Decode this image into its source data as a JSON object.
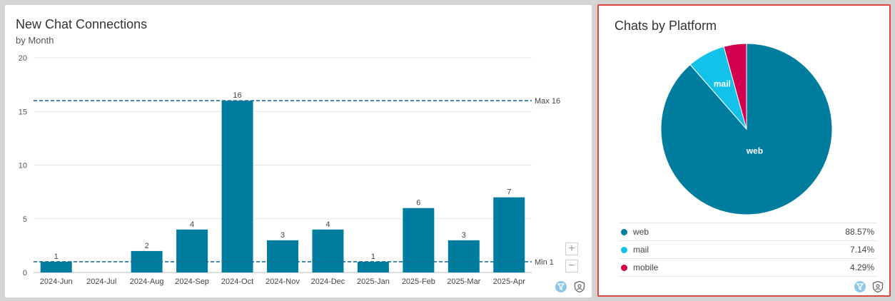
{
  "colors": {
    "bar": "#007d9e",
    "accent_line": "#1b6e8f",
    "web": "#007d9e",
    "mail": "#12c2e9",
    "mobile": "#d2004f"
  },
  "left_panel": {
    "title": "New Chat Connections",
    "subtitle": "by Month",
    "zoom_in_label": "+",
    "zoom_out_label": "−",
    "icons": [
      "filter-icon",
      "shield-icon"
    ]
  },
  "right_panel": {
    "title": "Chats by Platform",
    "legend": [
      {
        "label": "web",
        "value": "88.57%"
      },
      {
        "label": "mail",
        "value": "7.14%"
      },
      {
        "label": "mobile",
        "value": "4.29%"
      }
    ],
    "icons": [
      "filter-icon",
      "shield-icon"
    ]
  },
  "chart_data": [
    {
      "type": "bar",
      "title": "New Chat Connections",
      "subtitle": "by Month",
      "categories": [
        "2024-Jun",
        "2024-Jul",
        "2024-Aug",
        "2024-Sep",
        "2024-Oct",
        "2024-Nov",
        "2024-Dec",
        "2025-Jan",
        "2025-Feb",
        "2025-Mar",
        "2025-Apr"
      ],
      "values": [
        1,
        0,
        2,
        4,
        16,
        3,
        4,
        1,
        6,
        3,
        7
      ],
      "data_labels": [
        "1",
        "",
        "2",
        "4",
        "16",
        "3",
        "4",
        "1",
        "6",
        "3",
        "7"
      ],
      "ylim": [
        0,
        20
      ],
      "yticks": [
        0,
        5,
        10,
        15,
        20
      ],
      "reference_lines": [
        {
          "label": "Max 16",
          "value": 16
        },
        {
          "label": "Min 1",
          "value": 1
        }
      ],
      "grid": true
    },
    {
      "type": "pie",
      "title": "Chats by Platform",
      "labels": [
        "web",
        "mail",
        "mobile"
      ],
      "values": [
        88.57,
        7.14,
        4.29
      ],
      "slice_labels": [
        "web",
        "mail",
        ""
      ]
    }
  ]
}
